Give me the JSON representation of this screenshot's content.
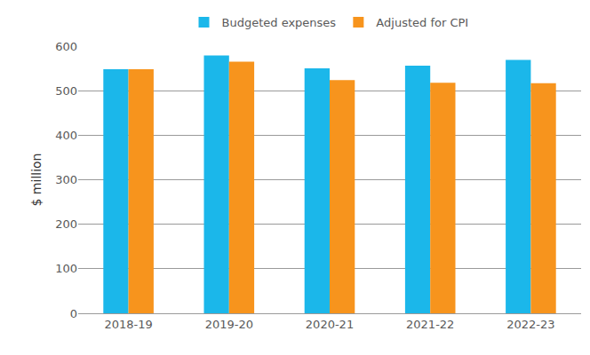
{
  "chart_data": {
    "type": "bar",
    "y_label": "$ million",
    "categories": [
      "2018-19",
      "2019-20",
      "2020-21",
      "2021-22",
      "2022-23"
    ],
    "series": [
      {
        "name": "Budgeted expenses",
        "color": "#1bb7ea",
        "values": [
          548,
          579,
          550,
          556,
          569
        ]
      },
      {
        "name": "Adjusted for CPI",
        "color": "#f7941d",
        "values": [
          548,
          565,
          524,
          518,
          517
        ]
      }
    ],
    "ylim": [
      0,
      600
    ],
    "yticks": [
      0,
      100,
      200,
      300,
      400,
      500,
      600
    ],
    "grid": true,
    "legend": "top"
  }
}
